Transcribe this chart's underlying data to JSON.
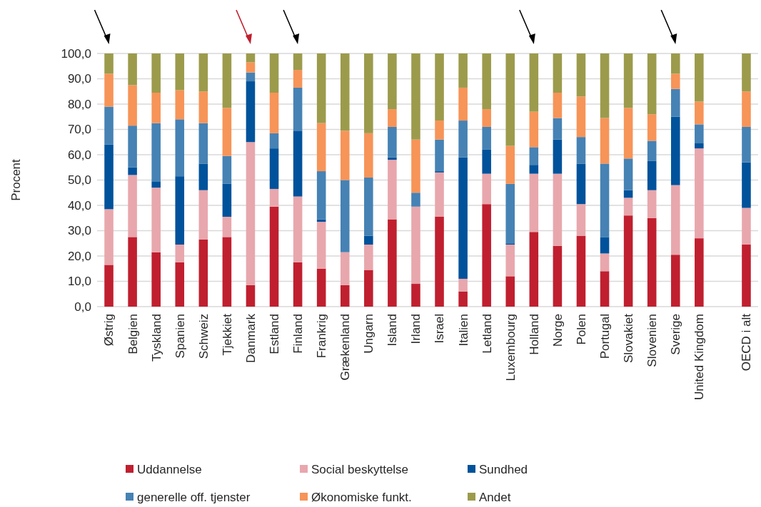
{
  "chart_data": {
    "type": "bar",
    "stacked": true,
    "ylabel": "Procent",
    "categories": [
      "Østrig",
      "Belgien",
      "Tyskland",
      "Spanien",
      "Schweiz",
      "Tjekkiet",
      "Danmark",
      "Estland",
      "Finland",
      "Frankrig",
      "Grækenland",
      "Ungarn",
      "Island",
      "Irland",
      "Israel",
      "Italien",
      "Letland",
      "Luxembourg",
      "Holland",
      "Norge",
      "Polen",
      "Portugal",
      "Slovakiet",
      "Slovenien",
      "Sverige",
      "United Kingdom",
      null,
      "OECD i alt"
    ],
    "series": [
      {
        "name": "Uddannelse",
        "color": "#c01f2f",
        "values": [
          16.5,
          27.5,
          21.5,
          17.5,
          26.5,
          27.5,
          8.5,
          39.5,
          17.5,
          15,
          8.5,
          14.5,
          34.5,
          9,
          35.5,
          6,
          40.5,
          12,
          29.5,
          24,
          28,
          14,
          36,
          35,
          20.5,
          27,
          null,
          24.5
        ]
      },
      {
        "name": "Social beskyttelse",
        "color": "#e8a7ad",
        "values": [
          22,
          24.5,
          25.5,
          7,
          19.5,
          8,
          56.5,
          7,
          26,
          18.5,
          13,
          10,
          23.5,
          30.5,
          17.5,
          5,
          12,
          12.5,
          23,
          28.5,
          12.5,
          7,
          7,
          11,
          27.5,
          35.5,
          null,
          14.5
        ]
      },
      {
        "name": "Sundhed",
        "color": "#00529b",
        "values": [
          25.5,
          3,
          2.5,
          27,
          10.5,
          13,
          24,
          16,
          26,
          1,
          0,
          3.5,
          1,
          0,
          0.5,
          48,
          9.5,
          0.5,
          3.5,
          13.5,
          16,
          6.5,
          3,
          11.5,
          27,
          2,
          null,
          18
        ]
      },
      {
        "name": "generelle off. tjenster",
        "color": "#4682b4",
        "values": [
          15,
          16.5,
          23,
          22.5,
          16,
          11,
          3.5,
          6,
          17,
          19,
          28.5,
          23,
          12,
          5.5,
          12.5,
          14.5,
          9,
          23.5,
          7,
          8.5,
          10.5,
          29,
          12.5,
          8,
          11,
          7.5,
          null,
          14
        ]
      },
      {
        "name": "Økonomiske funkt.",
        "color": "#f79458",
        "values": [
          13,
          16,
          12,
          11.5,
          12.5,
          19,
          4,
          16,
          7,
          19,
          19.5,
          17.5,
          7,
          21,
          7.5,
          13,
          7,
          15,
          14,
          10,
          16,
          18,
          20,
          10.5,
          6,
          9,
          null,
          14
        ]
      },
      {
        "name": "Andet",
        "color": "#9c9b4c",
        "values": [
          8,
          12.5,
          15.5,
          14.5,
          15,
          21.5,
          3.5,
          15.5,
          6.5,
          27.5,
          30.5,
          31.5,
          22,
          34,
          26.5,
          13.5,
          22,
          36.5,
          23,
          15.5,
          17,
          25.5,
          21.5,
          24,
          8,
          19,
          null,
          15
        ]
      }
    ],
    "ylim": [
      0,
      100
    ],
    "yticks": [
      {
        "value": 0,
        "label": "0,0"
      },
      {
        "value": 10,
        "label": "10,0"
      },
      {
        "value": 20,
        "label": "20,0"
      },
      {
        "value": 30,
        "label": "30,0"
      },
      {
        "value": 40,
        "label": "40,0"
      },
      {
        "value": 50,
        "label": "50,0"
      },
      {
        "value": 60,
        "label": "60,0"
      },
      {
        "value": 70,
        "label": "70,0"
      },
      {
        "value": 80,
        "label": "80,0"
      },
      {
        "value": 90,
        "label": "90,0"
      },
      {
        "value": 100,
        "label": "100,0"
      }
    ],
    "grid": "y",
    "legend": "bottom"
  }
}
